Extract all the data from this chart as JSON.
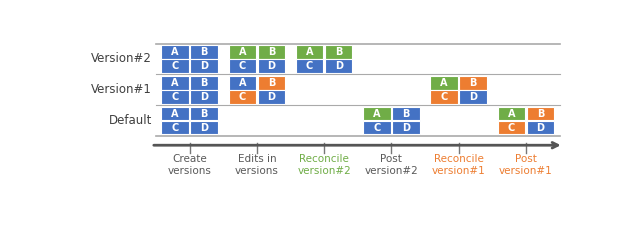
{
  "blue": "#4472C4",
  "green": "#70AD47",
  "orange": "#ED7D31",
  "col_label_colors": [
    "#595959",
    "#595959",
    "#70AD47",
    "#595959",
    "#ED7D31",
    "#ED7D31"
  ],
  "row_labels": [
    "Version#2",
    "Version#1",
    "Default"
  ],
  "col_labels": [
    "Create\nversions",
    "Edits in\nversions",
    "Reconcile\nversion#2",
    "Post\nversion#2",
    "Reconcile\nversion#1",
    "Post\nversion#1"
  ],
  "grids": {
    "Version#2": {
      "col0": [
        [
          "blue",
          "blue"
        ],
        [
          "blue",
          "blue"
        ]
      ],
      "col1": [
        [
          "green",
          "green"
        ],
        [
          "blue",
          "blue"
        ]
      ],
      "col2": [
        [
          "green",
          "green"
        ],
        [
          "blue",
          "blue"
        ]
      ],
      "col3": null,
      "col4": null,
      "col5": null
    },
    "Version#1": {
      "col0": [
        [
          "blue",
          "blue"
        ],
        [
          "blue",
          "blue"
        ]
      ],
      "col1": [
        [
          "blue",
          "orange"
        ],
        [
          "orange",
          "blue"
        ]
      ],
      "col2": null,
      "col3": null,
      "col4": [
        [
          "green",
          "orange"
        ],
        [
          "orange",
          "blue"
        ]
      ],
      "col5": null
    },
    "Default": {
      "col0": [
        [
          "blue",
          "blue"
        ],
        [
          "blue",
          "blue"
        ]
      ],
      "col1": null,
      "col2": null,
      "col3": [
        [
          "green",
          "blue"
        ],
        [
          "blue",
          "blue"
        ]
      ],
      "col4": null,
      "col5": [
        [
          "green",
          "orange"
        ],
        [
          "orange",
          "blue"
        ]
      ]
    }
  },
  "cell_labels": [
    [
      "A",
      "B"
    ],
    [
      "C",
      "D"
    ]
  ],
  "figsize": [
    6.3,
    2.4
  ],
  "dpi": 100
}
